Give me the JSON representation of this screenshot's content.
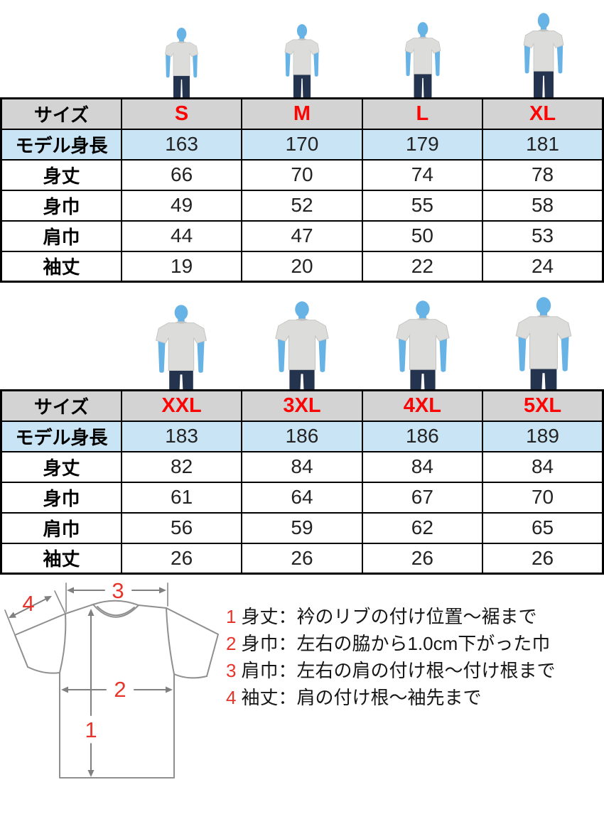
{
  "colors": {
    "header_bg": "#d3d3d3",
    "highlight_bg": "#c9e4f5",
    "size_red": "#fb0404",
    "legend_red": "#e8352b",
    "border_black": "#000000",
    "model_skin_blue": "#68b3e5",
    "shirt_gray": "#dcdcda",
    "shirt_edge": "#c2c2c0",
    "jeans_navy": "#24344e",
    "diagram_line": "#8f8f8f"
  },
  "chart_data": [
    {
      "type": "table",
      "title": "サイズ表 S-XL",
      "header": [
        "サイズ",
        "S",
        "M",
        "L",
        "XL"
      ],
      "row_labels": [
        "モデル身長",
        "身丈",
        "身巾",
        "肩巾",
        "袖丈"
      ],
      "rows": [
        [
          "163",
          "170",
          "179",
          "181"
        ],
        [
          "66",
          "70",
          "74",
          "78"
        ],
        [
          "49",
          "52",
          "55",
          "58"
        ],
        [
          "44",
          "47",
          "50",
          "53"
        ],
        [
          "19",
          "20",
          "22",
          "24"
        ]
      ]
    },
    {
      "type": "table",
      "title": "サイズ表 XXL-5XL",
      "header": [
        "サイズ",
        "XXL",
        "3XL",
        "4XL",
        "5XL"
      ],
      "row_labels": [
        "モデル身長",
        "身丈",
        "身巾",
        "肩巾",
        "袖丈"
      ],
      "rows": [
        [
          "183",
          "186",
          "186",
          "189"
        ],
        [
          "82",
          "84",
          "84",
          "84"
        ],
        [
          "61",
          "64",
          "67",
          "70"
        ],
        [
          "56",
          "59",
          "62",
          "65"
        ],
        [
          "26",
          "26",
          "26",
          "26"
        ]
      ]
    }
  ],
  "diagram": {
    "markers": [
      "1",
      "2",
      "3",
      "4"
    ]
  },
  "legend": [
    {
      "num": "1",
      "text": "身丈：衿のリブの付け位置～裾まで"
    },
    {
      "num": "2",
      "text": "身巾：左右の脇から1.0cm下がった巾"
    },
    {
      "num": "3",
      "text": "肩巾：左右の肩の付け根～付け根まで"
    },
    {
      "num": "4",
      "text": "袖丈：肩の付け根～袖先まで"
    }
  ]
}
